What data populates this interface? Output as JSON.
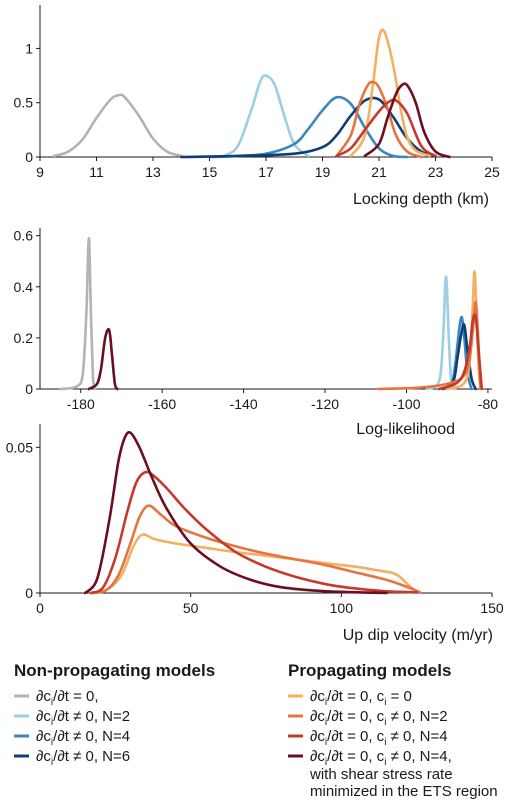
{
  "chart_data": [
    {
      "type": "line",
      "xlabel": "Locking depth (km)",
      "xlim": [
        9,
        25
      ],
      "ylim": [
        0,
        1.4
      ],
      "xticks": [
        "9",
        "11",
        "13",
        "15",
        "17",
        "19",
        "21",
        "23",
        "25"
      ],
      "yticks": [
        "0",
        "0.5",
        "1"
      ],
      "series": [
        {
          "name": "np1",
          "color": "#b3b3b3",
          "x": [
            9.5,
            10,
            10.5,
            11,
            11.5,
            11.8,
            12,
            12.5,
            13,
            13.5,
            14
          ],
          "y": [
            0.01,
            0.05,
            0.16,
            0.36,
            0.53,
            0.57,
            0.55,
            0.38,
            0.17,
            0.05,
            0.01
          ]
        },
        {
          "name": "np2",
          "color": "#9ccfe3",
          "x": [
            15.5,
            16,
            16.5,
            16.8,
            17,
            17.3,
            17.6,
            18,
            18.5
          ],
          "y": [
            0.01,
            0.1,
            0.45,
            0.7,
            0.75,
            0.67,
            0.42,
            0.12,
            0.01
          ]
        },
        {
          "name": "np3",
          "color": "#3a87bd",
          "x": [
            15,
            16,
            17,
            18,
            18.5,
            19,
            19.5,
            20,
            20.5,
            21,
            21.5,
            22
          ],
          "y": [
            0,
            0.01,
            0.03,
            0.12,
            0.26,
            0.43,
            0.55,
            0.49,
            0.27,
            0.08,
            0.01,
            0
          ]
        },
        {
          "name": "np4",
          "color": "#0f3d7a",
          "x": [
            14,
            16,
            18,
            19,
            19.5,
            20,
            20.5,
            21,
            21.5,
            22,
            22.5,
            23
          ],
          "y": [
            0,
            0.01,
            0.03,
            0.09,
            0.2,
            0.38,
            0.52,
            0.53,
            0.37,
            0.17,
            0.05,
            0.01
          ]
        },
        {
          "name": "p1",
          "color": "#f3b060",
          "x": [
            20,
            20.5,
            20.8,
            21,
            21.2,
            21.5,
            21.8,
            22,
            22.3,
            22.8
          ],
          "y": [
            0.01,
            0.2,
            0.7,
            1.1,
            1.15,
            0.85,
            0.4,
            0.18,
            0.06,
            0.01
          ]
        },
        {
          "name": "p2",
          "color": "#e5743e",
          "x": [
            19.5,
            20,
            20.3,
            20.6,
            20.8,
            21,
            21.3,
            21.6,
            22,
            22.5
          ],
          "y": [
            0.01,
            0.2,
            0.48,
            0.66,
            0.69,
            0.64,
            0.45,
            0.2,
            0.05,
            0
          ]
        },
        {
          "name": "p3",
          "color": "#c63a2d",
          "x": [
            19.5,
            20,
            20.5,
            21,
            21.3,
            21.6,
            22,
            22.5,
            23
          ],
          "y": [
            0.01,
            0.08,
            0.25,
            0.42,
            0.5,
            0.52,
            0.4,
            0.1,
            0.01
          ]
        },
        {
          "name": "p4",
          "color": "#6b0e22",
          "x": [
            20.5,
            21,
            21.3,
            21.6,
            21.8,
            22,
            22.3,
            22.6,
            23,
            23.5
          ],
          "y": [
            0.01,
            0.12,
            0.36,
            0.58,
            0.66,
            0.66,
            0.5,
            0.23,
            0.05,
            0
          ]
        }
      ]
    },
    {
      "type": "line",
      "xlabel": "Log-likelihood",
      "xlim": [
        -190,
        -79
      ],
      "ylim": [
        0,
        0.63
      ],
      "xticks": [
        "-180",
        "-160",
        "-140",
        "-120",
        "-100",
        "-80"
      ],
      "yticks": [
        "0",
        "0.2",
        "0.4",
        "0.6"
      ],
      "series": [
        {
          "name": "np1",
          "color": "#b3b3b3",
          "x": [
            -185,
            -181,
            -179.5,
            -178.6,
            -178,
            -177.5,
            -177,
            -176.5
          ],
          "y": [
            0,
            0.01,
            0.06,
            0.3,
            0.59,
            0.3,
            0.05,
            0
          ]
        },
        {
          "name": "p4",
          "color": "#6b0e22",
          "x": [
            -178,
            -176,
            -175,
            -174,
            -173,
            -172.3,
            -171.6,
            -171
          ],
          "y": [
            0,
            0.02,
            0.08,
            0.2,
            0.23,
            0.13,
            0.02,
            0
          ]
        },
        {
          "name": "np2",
          "color": "#9ccfe3",
          "x": [
            -95,
            -92,
            -91,
            -90.3,
            -89.6,
            -89,
            -88
          ],
          "y": [
            0,
            0.03,
            0.2,
            0.44,
            0.2,
            0.03,
            0
          ]
        },
        {
          "name": "np3",
          "color": "#3a87bd",
          "x": [
            -92,
            -89,
            -88,
            -87,
            -86.4,
            -85.8,
            -85,
            -84
          ],
          "y": [
            0,
            0.02,
            0.1,
            0.24,
            0.28,
            0.2,
            0.06,
            0
          ]
        },
        {
          "name": "np4",
          "color": "#0f3d7a",
          "x": [
            -91,
            -88.5,
            -87.5,
            -86.5,
            -85.8,
            -85,
            -84,
            -83
          ],
          "y": [
            0,
            0.03,
            0.12,
            0.22,
            0.25,
            0.15,
            0.04,
            0
          ]
        },
        {
          "name": "p1",
          "color": "#f3b060",
          "x": [
            -90,
            -86,
            -84.5,
            -83.8,
            -83.3,
            -82.8,
            -82.3,
            -81.8
          ],
          "y": [
            0,
            0.02,
            0.1,
            0.3,
            0.46,
            0.3,
            0.08,
            0
          ]
        },
        {
          "name": "p2",
          "color": "#e5743e",
          "x": [
            -107,
            -97,
            -90,
            -86,
            -84.5,
            -83.6,
            -83,
            -82.4,
            -81.8
          ],
          "y": [
            0,
            0.005,
            0.02,
            0.05,
            0.12,
            0.25,
            0.34,
            0.2,
            0
          ]
        },
        {
          "name": "p3",
          "color": "#c63a2d",
          "x": [
            -92,
            -88,
            -86,
            -84.6,
            -83.7,
            -83,
            -82.3,
            -81.5
          ],
          "y": [
            0,
            0.02,
            0.06,
            0.15,
            0.27,
            0.28,
            0.15,
            0
          ]
        }
      ]
    },
    {
      "type": "line",
      "xlabel": "Up dip velocity (m/yr)",
      "xlim": [
        0,
        150
      ],
      "ylim": [
        0,
        0.058
      ],
      "xticks": [
        "0",
        "50",
        "100",
        "150"
      ],
      "yticks": [
        "0",
        "0.05"
      ],
      "series": [
        {
          "name": "p1",
          "color": "#f3b060",
          "x": [
            17,
            22,
            27,
            31,
            34,
            38,
            45,
            55,
            65,
            75,
            85,
            95,
            105,
            112,
            118,
            122,
            125
          ],
          "y": [
            0,
            0.001,
            0.006,
            0.016,
            0.02,
            0.0185,
            0.017,
            0.0155,
            0.014,
            0.0128,
            0.0115,
            0.0102,
            0.009,
            0.0078,
            0.0065,
            0.003,
            0.0003
          ]
        },
        {
          "name": "p2",
          "color": "#e5743e",
          "x": [
            17,
            22,
            26,
            30,
            33,
            36,
            40,
            45,
            55,
            65,
            75,
            85,
            95,
            105,
            115,
            122,
            126
          ],
          "y": [
            0,
            0.001,
            0.006,
            0.017,
            0.026,
            0.03,
            0.027,
            0.023,
            0.019,
            0.016,
            0.0135,
            0.0115,
            0.0095,
            0.007,
            0.0045,
            0.002,
            0.0003
          ]
        },
        {
          "name": "p3",
          "color": "#c63a2d",
          "x": [
            17,
            21,
            25,
            29,
            32,
            35,
            38,
            42,
            48,
            55,
            65,
            75,
            85,
            95,
            105,
            115,
            125
          ],
          "y": [
            0,
            0.002,
            0.012,
            0.028,
            0.038,
            0.0415,
            0.04,
            0.036,
            0.029,
            0.022,
            0.014,
            0.009,
            0.0055,
            0.003,
            0.0015,
            0.0006,
            0.0002
          ]
        },
        {
          "name": "p4",
          "color": "#6b0e22",
          "x": [
            15,
            19,
            23,
            26,
            28,
            30,
            33,
            37,
            42,
            50,
            60,
            70,
            80,
            95,
            115
          ],
          "y": [
            0,
            0.005,
            0.025,
            0.045,
            0.053,
            0.055,
            0.05,
            0.04,
            0.029,
            0.017,
            0.009,
            0.0045,
            0.002,
            0.0006,
            0
          ]
        }
      ]
    }
  ],
  "legend": {
    "non_propagating": {
      "title": "Non-propagating models",
      "items": [
        {
          "pre": "∂c",
          "sub": "i",
          "post": "/∂t = 0,",
          "color": "#b3b3b3"
        },
        {
          "pre": "∂c",
          "sub": "i",
          "post": "/∂t ≠ 0, N=2",
          "color": "#9ccfe3"
        },
        {
          "pre": "∂c",
          "sub": "i",
          "post": "/∂t ≠ 0, N=4",
          "color": "#3a87bd"
        },
        {
          "pre": "∂c",
          "sub": "i",
          "post": "/∂t ≠ 0, N=6",
          "color": "#0f3d7a"
        }
      ]
    },
    "propagating": {
      "title": "Propagating models",
      "items": [
        {
          "pre": "∂c",
          "sub": "i",
          "mid": "/∂t = 0, c",
          "sub2": "i",
          "post": " = 0",
          "color": "#f3b060"
        },
        {
          "pre": "∂c",
          "sub": "i",
          "mid": "/∂t = 0, c",
          "sub2": "i",
          "post": " ≠ 0, N=2",
          "color": "#e5743e"
        },
        {
          "pre": "∂c",
          "sub": "i",
          "mid": "/∂t = 0, c",
          "sub2": "i",
          "post": " ≠ 0, N=4",
          "color": "#c63a2d"
        },
        {
          "pre": "∂c",
          "sub": "i",
          "mid": "/∂t = 0, c",
          "sub2": "i",
          "post": " ≠ 0, N=4,",
          "color": "#6b0e22",
          "extra": [
            "with shear stress rate",
            "minimized in the ETS region"
          ]
        }
      ]
    }
  }
}
